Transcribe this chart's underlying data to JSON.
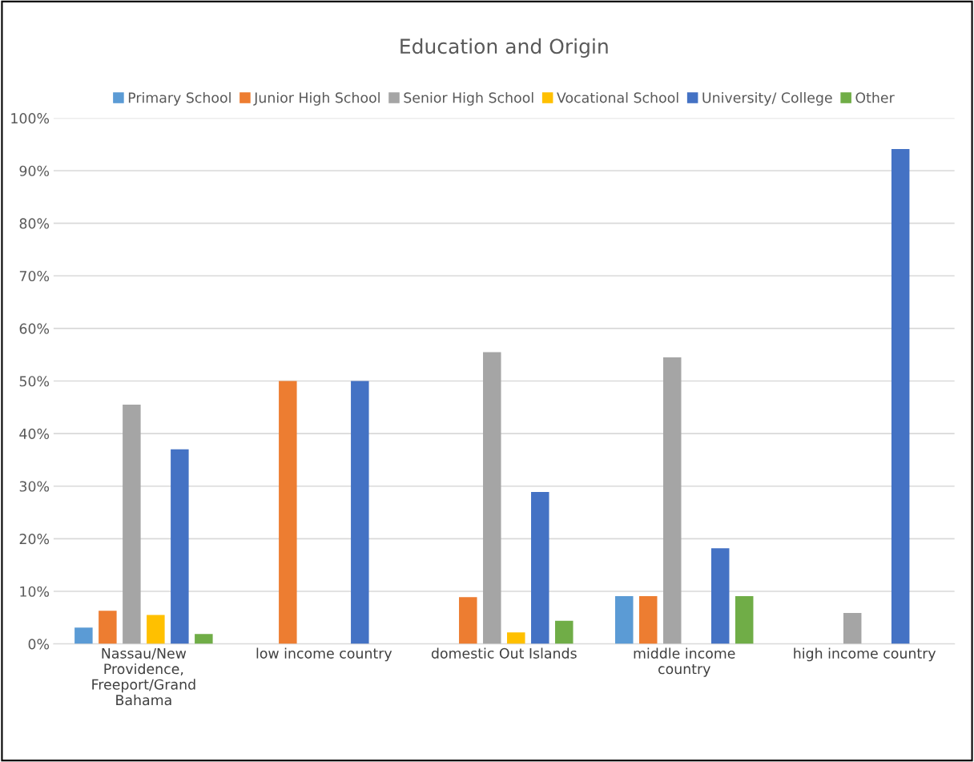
{
  "chart_data": {
    "type": "bar",
    "title": "Education and Origin",
    "categories": [
      "Nassau/New\nProvidence,\nFreeport/Grand\nBahama",
      "low income country",
      "domestic Out Islands",
      "middle income\ncountry",
      "high income country"
    ],
    "series": [
      {
        "name": "Primary School",
        "color": "#5b9bd5",
        "values": [
          3.1,
          null,
          null,
          9.1,
          null
        ]
      },
      {
        "name": "Junior High School",
        "color": "#ed7d31",
        "values": [
          6.3,
          50,
          8.9,
          9.1,
          null
        ]
      },
      {
        "name": "Senior High School",
        "color": "#a5a5a5",
        "values": [
          45.5,
          null,
          55.5,
          54.5,
          5.9
        ]
      },
      {
        "name": "Vocational School",
        "color": "#ffc000",
        "values": [
          5.5,
          null,
          2.2,
          null,
          null
        ]
      },
      {
        "name": "University/ College",
        "color": "#4472c4",
        "values": [
          37,
          50,
          28.9,
          18.2,
          94.1
        ]
      },
      {
        "name": "Other",
        "color": "#70ad47",
        "values": [
          1.9,
          null,
          4.4,
          9.1,
          null
        ]
      }
    ],
    "ylim": [
      0,
      100
    ],
    "yticks": [
      {
        "value": 0,
        "label": "0%"
      },
      {
        "value": 10,
        "label": "10%"
      },
      {
        "value": 20,
        "label": "20%"
      },
      {
        "value": 30,
        "label": "30%"
      },
      {
        "value": 40,
        "label": "40%"
      },
      {
        "value": 50,
        "label": "50%"
      },
      {
        "value": 60,
        "label": "60%"
      },
      {
        "value": 70,
        "label": "70%"
      },
      {
        "value": 80,
        "label": "80%"
      },
      {
        "value": 90,
        "label": "90%"
      },
      {
        "value": 100,
        "label": "100%"
      }
    ],
    "grid": "y",
    "legend": "top"
  }
}
